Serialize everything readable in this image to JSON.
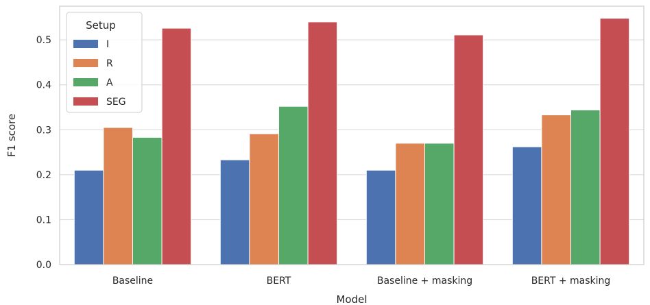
{
  "chart_data": {
    "type": "bar",
    "title": "",
    "xlabel": "Model",
    "ylabel": "F1 score",
    "categories": [
      "Baseline",
      "BERT",
      "Baseline + masking",
      "BERT + masking"
    ],
    "ylim": [
      0,
      0.575
    ],
    "yticks": [
      "0.0",
      "0.1",
      "0.2",
      "0.3",
      "0.4",
      "0.5"
    ],
    "grid": true,
    "legend": {
      "title": "Setup",
      "placement": "top-left"
    },
    "series": [
      {
        "name": "I",
        "color": "#4c72b0",
        "values": [
          0.21,
          0.233,
          0.21,
          0.262
        ]
      },
      {
        "name": "R",
        "color": "#dd8452",
        "values": [
          0.305,
          0.291,
          0.27,
          0.333
        ]
      },
      {
        "name": "A",
        "color": "#55a868",
        "values": [
          0.283,
          0.352,
          0.27,
          0.344
        ]
      },
      {
        "name": "SEG",
        "color": "#c44e52",
        "values": [
          0.526,
          0.54,
          0.511,
          0.548
        ]
      }
    ]
  }
}
